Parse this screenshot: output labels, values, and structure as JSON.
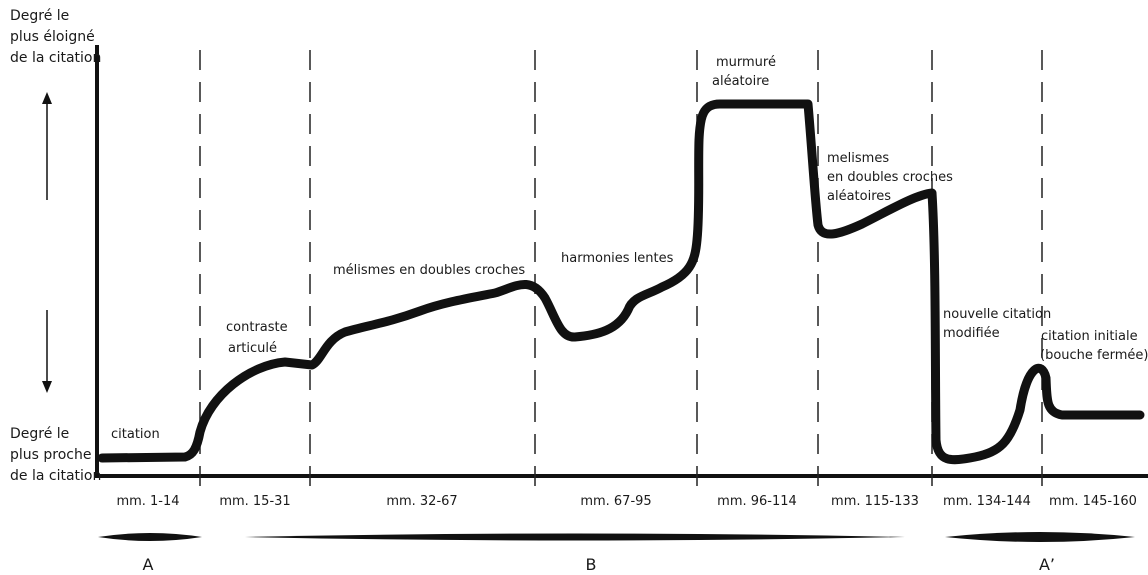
{
  "axis": {
    "top_label": [
      "Degré le",
      "plus éloigné",
      "de la citation"
    ],
    "bottom_label": [
      "Degré le",
      "plus proche",
      "de la citation"
    ]
  },
  "segments": [
    "mm. 1-14",
    "mm. 15-31",
    "mm. 32-67",
    "mm. 67-95",
    "mm. 96-114",
    "mm. 115-133",
    "mm. 134-144",
    "mm. 145-160"
  ],
  "annotations": {
    "citation": "citation",
    "contraste": [
      "contraste",
      "articulé"
    ],
    "melismes1": "mélismes en doubles croches",
    "harmonies": "harmonies lentes",
    "murmure": [
      "murmuré",
      "aléatoire"
    ],
    "melismes2": [
      "melismes",
      "en doubles croches",
      "aléatoires"
    ],
    "nouvelle": [
      "nouvelle citation",
      "modifiée"
    ],
    "initiale": [
      "citation initiale",
      "(bouche fermée)"
    ]
  },
  "sections": {
    "a": "A",
    "b": "B",
    "a_prime": "A’"
  }
}
